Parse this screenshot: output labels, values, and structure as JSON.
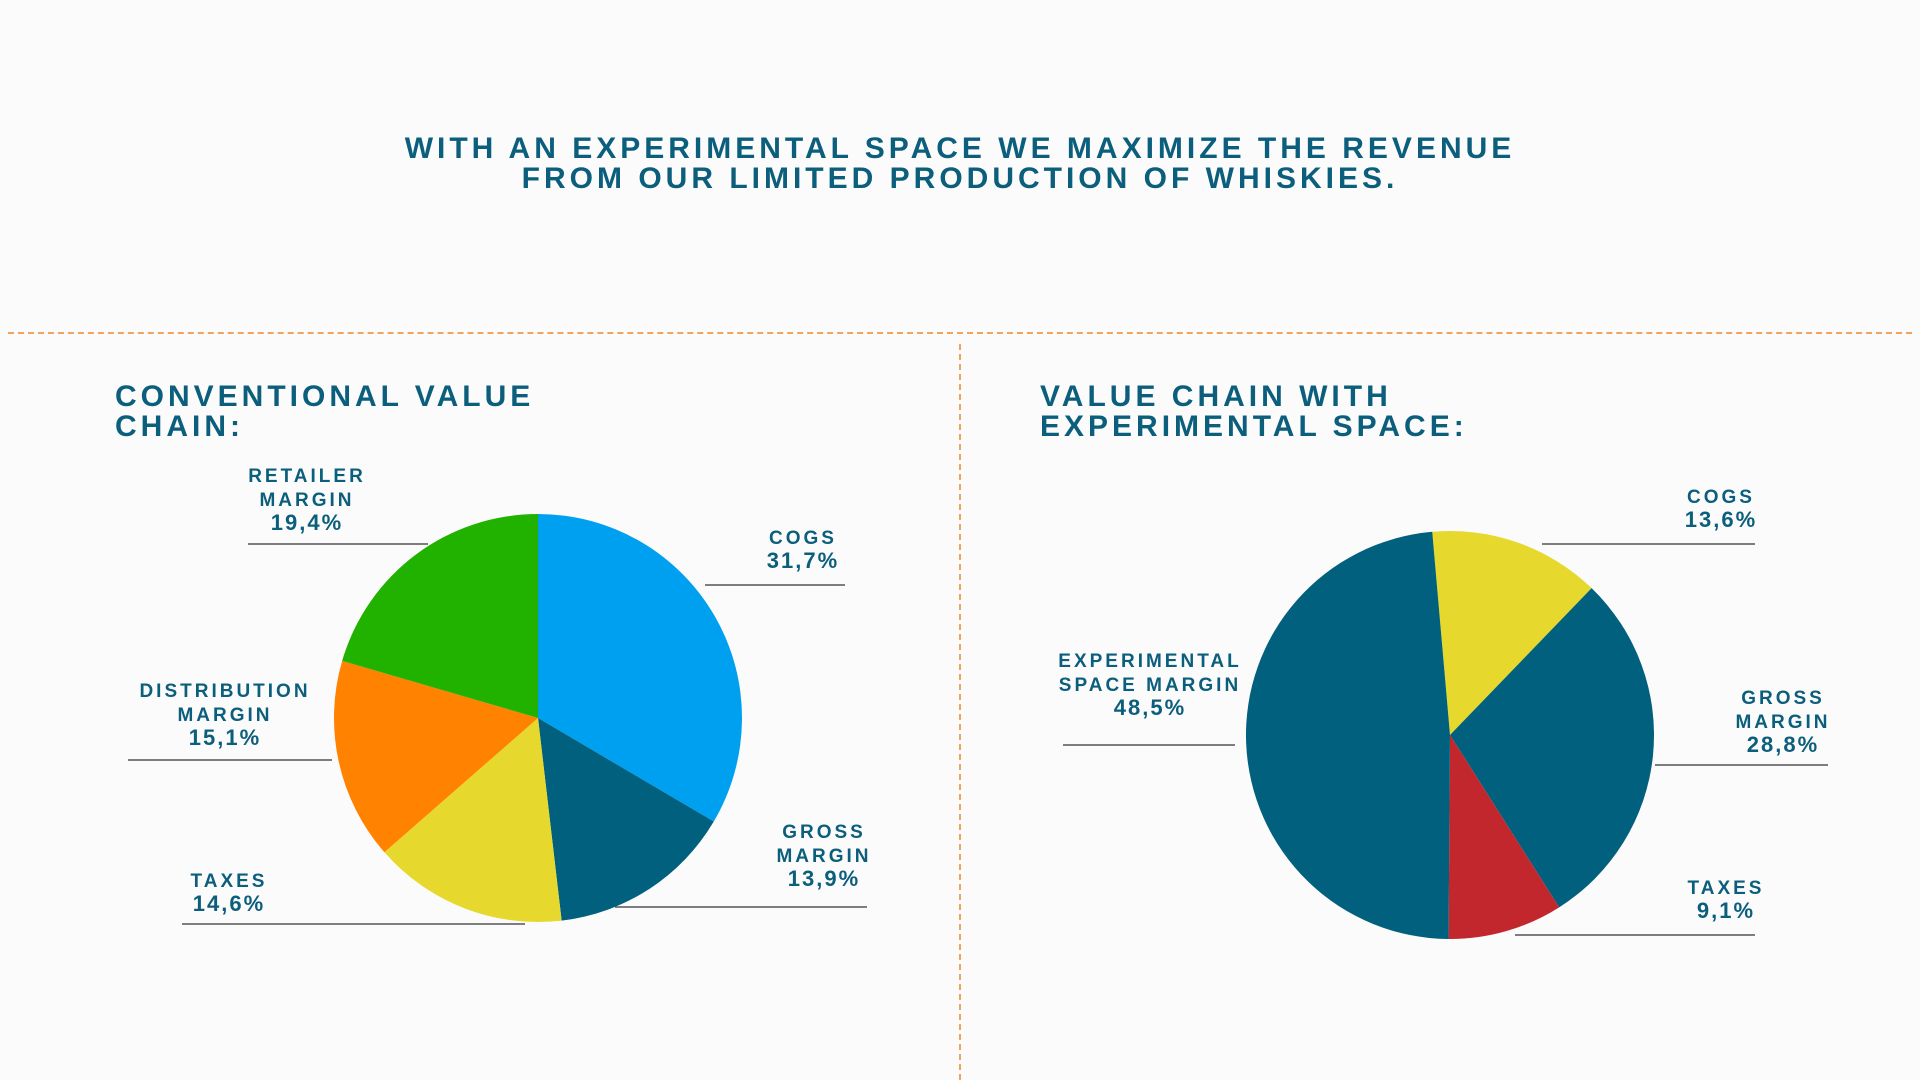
{
  "headline": {
    "line1": "WITH AN EXPERIMENTAL SPACE WE MAXIMIZE THE REVENUE",
    "line2": "FROM OUR LIMITED PRODUCTION OF WHISKIES."
  },
  "colors": {
    "text": "#0b5e7c",
    "divider": "#f0a45c",
    "leader": "#555555"
  },
  "chart_data": [
    {
      "type": "pie",
      "title": "CONVENTIONAL VALUE\nCHAIN:",
      "slices": [
        {
          "name": "COGS",
          "label_lines": [
            "COGS",
            "31,7%"
          ],
          "value": 31.7,
          "color": "#00a0f0"
        },
        {
          "name": "GROSS MARGIN",
          "label_lines": [
            "GROSS",
            "MARGIN",
            "13,9%"
          ],
          "value": 13.9,
          "color": "#00607e"
        },
        {
          "name": "TAXES",
          "label_lines": [
            "TAXES",
            "14,6%"
          ],
          "value": 14.6,
          "color": "#e6d82c"
        },
        {
          "name": "DISTRIBUTION MARGIN",
          "label_lines": [
            "DISTRIBUTION",
            "MARGIN",
            "15,1%"
          ],
          "value": 15.1,
          "color": "#ff8200"
        },
        {
          "name": "RETAILER MARGIN",
          "label_lines": [
            "RETAILER",
            "MARGIN",
            "19,4%"
          ],
          "value": 19.4,
          "color": "#21b200"
        }
      ],
      "start_angle_deg": 0,
      "direction": "clockwise"
    },
    {
      "type": "pie",
      "title": "VALUE CHAIN WITH\nEXPERIMENTAL SPACE:",
      "slices": [
        {
          "name": "COGS",
          "label_lines": [
            "COGS",
            "13,6%"
          ],
          "value": 13.6,
          "color": "#e6d82c"
        },
        {
          "name": "GROSS MARGIN",
          "label_lines": [
            "GROSS",
            "MARGIN",
            "28,8%"
          ],
          "value": 28.8,
          "color": "#00607e"
        },
        {
          "name": "TAXES",
          "label_lines": [
            "TAXES",
            "9,1%"
          ],
          "value": 9.1,
          "color": "#c1272d"
        },
        {
          "name": "EXPERIMENTAL SPACE MARGIN",
          "label_lines": [
            "EXPERIMENTAL",
            "SPACE MARGIN",
            "48,5%"
          ],
          "value": 48.5,
          "color": "#00607e"
        }
      ],
      "start_angle_deg": -5,
      "direction": "clockwise"
    }
  ]
}
